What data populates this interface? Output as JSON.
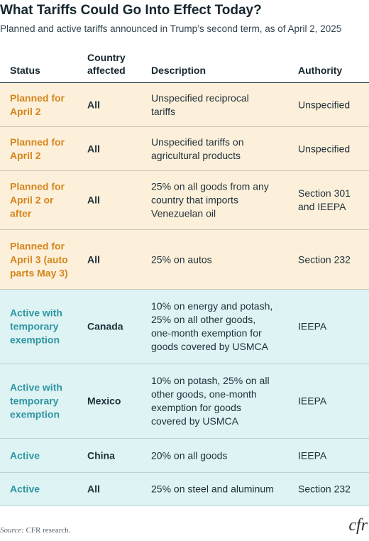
{
  "title": "What Tariffs Could Go Into Effect Today?",
  "subtitle": "Planned and active tariffs announced in Trump’s second term, as of April 2, 2025",
  "headers": {
    "status": "Status",
    "country_line1": "Country",
    "country_line2": "affected",
    "description": "Description",
    "authority": "Authority"
  },
  "rows": [
    {
      "status": [
        "Planned for",
        "April 2"
      ],
      "country": "All",
      "description": [
        "Unspecified reciprocal",
        "tariffs"
      ],
      "authority": [
        "Unspecified"
      ]
    },
    {
      "status": [
        "Planned for",
        "April 2"
      ],
      "country": "All",
      "description": [
        "Unspecified tariffs on",
        "agricultural products"
      ],
      "authority": [
        "Unspecified"
      ]
    },
    {
      "status": [
        "Planned for",
        "April 2 or",
        "after"
      ],
      "country": "All",
      "description": [
        "25% on all goods from any",
        "country that imports",
        "Venezuelan oil"
      ],
      "authority": [
        "Section 301",
        "and IEEPA"
      ]
    },
    {
      "status": [
        "Planned for",
        "April 3 (auto",
        "parts May 3)"
      ],
      "country": "All",
      "description": [
        "25% on autos"
      ],
      "authority": [
        "Section 232"
      ]
    },
    {
      "status": [
        "Active with",
        "temporary",
        "exemption"
      ],
      "country": "Canada",
      "description": [
        "10% on energy and potash,",
        "25% on all other goods,",
        "one-month exemption for",
        "goods covered by USMCA"
      ],
      "authority": [
        "IEEPA"
      ]
    },
    {
      "status": [
        "Active with",
        "temporary",
        "exemption"
      ],
      "country": "Mexico",
      "description": [
        "10% on potash, 25% on all",
        "other goods, one-month",
        "exemption for goods",
        "covered by USMCA"
      ],
      "authority": [
        "IEEPA"
      ]
    },
    {
      "status": [
        "Active"
      ],
      "country": "China",
      "description": [
        "20% on all goods"
      ],
      "authority": [
        "IEEPA"
      ]
    },
    {
      "status": [
        "Active"
      ],
      "country": "All",
      "description": [
        "25% on steel and aluminum"
      ],
      "authority": [
        "Section 232"
      ]
    }
  ],
  "source_label": "Source:",
  "source_text": "CFR research.",
  "logo_text": "cfr"
}
